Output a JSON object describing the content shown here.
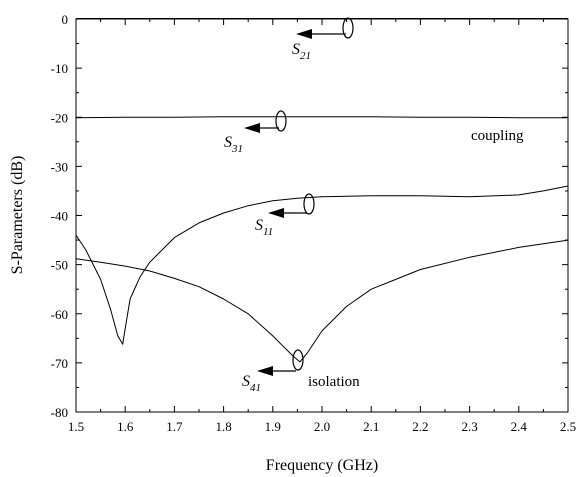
{
  "chart_data": {
    "type": "line",
    "xlabel": "Frequency (GHz)",
    "ylabel": "S-Parameters (dB)",
    "xlim": [
      1.5,
      2.5
    ],
    "ylim": [
      -80,
      0
    ],
    "xticks": [
      1.5,
      1.6,
      1.7,
      1.8,
      1.9,
      2.0,
      2.1,
      2.2,
      2.3,
      2.4,
      2.5
    ],
    "yticks": [
      0,
      -10,
      -20,
      -30,
      -40,
      -50,
      -60,
      -70,
      -80
    ],
    "xtick_labels": [
      "1.5",
      "1.6",
      "1.7",
      "1.8",
      "1.9",
      "2.0",
      "2.1",
      "2.2",
      "2.3",
      "2.4",
      "2.5"
    ],
    "ytick_labels": [
      "0",
      "-10",
      "-20",
      "-30",
      "-40",
      "-50",
      "-60",
      "-70",
      "-80"
    ],
    "grid": false,
    "series": [
      {
        "name": "S21",
        "x": [
          1.5,
          1.6,
          1.7,
          1.8,
          1.9,
          2.0,
          2.1,
          2.2,
          2.3,
          2.4,
          2.5
        ],
        "y": [
          0.1,
          0.1,
          0.1,
          0.1,
          0.1,
          0.1,
          0.1,
          0.1,
          0.1,
          0.1,
          0.1
        ]
      },
      {
        "name": "S31",
        "x": [
          1.5,
          1.6,
          1.7,
          1.8,
          1.9,
          2.0,
          2.1,
          2.2,
          2.3,
          2.4,
          2.5
        ],
        "y": [
          -20.1,
          -20.0,
          -20.0,
          -19.9,
          -19.9,
          -19.9,
          -19.9,
          -20.0,
          -20.0,
          -20.1,
          -20.1
        ]
      },
      {
        "name": "S11",
        "x": [
          1.5,
          1.52,
          1.55,
          1.57,
          1.585,
          1.595,
          1.6,
          1.61,
          1.63,
          1.65,
          1.7,
          1.75,
          1.8,
          1.85,
          1.9,
          1.95,
          2.0,
          2.1,
          2.2,
          2.3,
          2.4,
          2.45,
          2.5
        ],
        "y": [
          -44,
          -47,
          -53,
          -59,
          -64.5,
          -66.2,
          -63,
          -57,
          -52.5,
          -49.5,
          -44.5,
          -41.5,
          -39.5,
          -38,
          -37,
          -36.5,
          -36.2,
          -36,
          -36,
          -36.2,
          -35.8,
          -35,
          -34
        ]
      },
      {
        "name": "S41",
        "x": [
          1.5,
          1.55,
          1.6,
          1.65,
          1.7,
          1.75,
          1.8,
          1.85,
          1.9,
          1.92,
          1.94,
          1.955,
          1.97,
          2.0,
          2.05,
          2.1,
          2.2,
          2.3,
          2.4,
          2.5
        ],
        "y": [
          -48.8,
          -49.5,
          -50.3,
          -51.3,
          -52.8,
          -54.5,
          -57,
          -60,
          -64.5,
          -66.5,
          -68.5,
          -69.8,
          -68,
          -63.5,
          -58.5,
          -55,
          -51,
          -48.5,
          -46.5,
          -45
        ]
      }
    ],
    "annotations": {
      "s21": {
        "symbol": "S",
        "subscript": "21"
      },
      "s31": {
        "symbol": "S",
        "subscript": "31"
      },
      "s11": {
        "symbol": "S",
        "subscript": "11"
      },
      "s41": {
        "symbol": "S",
        "subscript": "41"
      },
      "coupling": "coupling",
      "isolation": "isolation"
    }
  }
}
